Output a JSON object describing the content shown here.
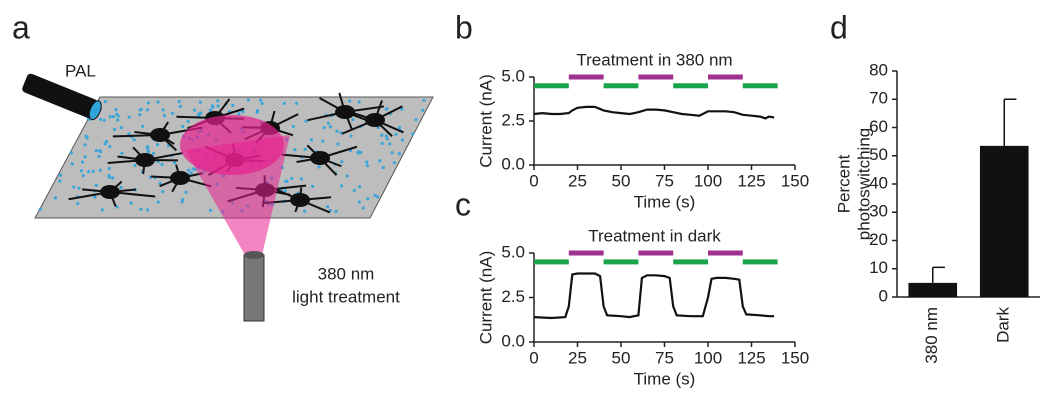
{
  "illustration": {
    "letter": "a",
    "pipette_label": "PAL",
    "light_label": [
      "380 nm",
      "light treatment"
    ]
  },
  "chart_data": [
    {
      "type": "line",
      "letter": "b",
      "title": "Treatment in 380 nm",
      "xlabel": "Time (s)",
      "ylabel": "Current (nA)",
      "x": [
        0,
        5,
        10,
        15,
        20,
        22,
        25,
        30,
        35,
        40,
        45,
        50,
        55,
        60,
        65,
        70,
        75,
        80,
        85,
        90,
        95,
        100,
        105,
        110,
        115,
        120,
        125,
        130,
        133,
        135,
        138
      ],
      "values": [
        2.9,
        2.95,
        2.9,
        2.9,
        2.95,
        3.1,
        3.25,
        3.3,
        3.3,
        3.1,
        3.0,
        2.95,
        2.9,
        3.0,
        3.15,
        3.15,
        3.1,
        3.0,
        2.9,
        2.85,
        2.8,
        3.05,
        3.05,
        3.05,
        3.0,
        2.85,
        2.8,
        2.75,
        2.65,
        2.75,
        2.7
      ],
      "color": "#111111",
      "intervals": [
        {
          "start": 0,
          "end": 20,
          "level": 4.5,
          "color": "#1aa34a"
        },
        {
          "start": 20,
          "end": 40,
          "level": 5.0,
          "color": "#a0308f"
        },
        {
          "start": 40,
          "end": 60,
          "level": 4.5,
          "color": "#1aa34a"
        },
        {
          "start": 60,
          "end": 80,
          "level": 5.0,
          "color": "#a0308f"
        },
        {
          "start": 80,
          "end": 100,
          "level": 4.5,
          "color": "#1aa34a"
        },
        {
          "start": 100,
          "end": 120,
          "level": 5.0,
          "color": "#a0308f"
        },
        {
          "start": 120,
          "end": 140,
          "level": 4.5,
          "color": "#1aa34a"
        }
      ],
      "xlim": [
        0,
        150
      ],
      "xticks": [
        0,
        25,
        50,
        75,
        100,
        125,
        150
      ],
      "ylim": [
        0,
        5
      ],
      "yticks": [
        {
          "value": 0,
          "label": "0.0"
        },
        {
          "value": 2.5,
          "label": "2.5"
        },
        {
          "value": 5,
          "label": "5.0"
        }
      ]
    },
    {
      "type": "line",
      "letter": "c",
      "title": "Treatment in dark",
      "xlabel": "Time (s)",
      "ylabel": "Current (nA)",
      "x": [
        0,
        10,
        18,
        20,
        22,
        25,
        30,
        35,
        38,
        40,
        42,
        50,
        55,
        60,
        62,
        65,
        70,
        75,
        78,
        80,
        82,
        90,
        97,
        100,
        102,
        105,
        110,
        115,
        118,
        120,
        122,
        130,
        135,
        138
      ],
      "values": [
        1.4,
        1.35,
        1.4,
        2.0,
        3.8,
        3.85,
        3.85,
        3.85,
        3.7,
        2.0,
        1.5,
        1.45,
        1.4,
        1.5,
        3.6,
        3.75,
        3.75,
        3.7,
        3.6,
        2.0,
        1.5,
        1.45,
        1.45,
        2.5,
        3.55,
        3.6,
        3.6,
        3.55,
        3.5,
        2.0,
        1.55,
        1.5,
        1.45,
        1.45
      ],
      "color": "#111111",
      "intervals": [
        {
          "start": 0,
          "end": 20,
          "level": 4.5,
          "color": "#1aa34a"
        },
        {
          "start": 20,
          "end": 40,
          "level": 5.0,
          "color": "#a0308f"
        },
        {
          "start": 40,
          "end": 60,
          "level": 4.5,
          "color": "#1aa34a"
        },
        {
          "start": 60,
          "end": 80,
          "level": 5.0,
          "color": "#a0308f"
        },
        {
          "start": 80,
          "end": 100,
          "level": 4.5,
          "color": "#1aa34a"
        },
        {
          "start": 100,
          "end": 120,
          "level": 5.0,
          "color": "#a0308f"
        },
        {
          "start": 120,
          "end": 140,
          "level": 4.5,
          "color": "#1aa34a"
        }
      ],
      "xlim": [
        0,
        150
      ],
      "xticks": [
        0,
        25,
        50,
        75,
        100,
        125,
        150
      ],
      "ylim": [
        0,
        5
      ],
      "yticks": [
        {
          "value": 0,
          "label": "0.0"
        },
        {
          "value": 2.5,
          "label": "2.5"
        },
        {
          "value": 5,
          "label": "5.0"
        }
      ]
    },
    {
      "type": "bar",
      "letter": "d",
      "ylabel": [
        "Percent",
        "photoswitching"
      ],
      "categories": [
        "380 nm",
        "Dark"
      ],
      "values": [
        5,
        53.5
      ],
      "errors": [
        5.5,
        16.5
      ],
      "color": "#111111",
      "ylim": [
        0,
        80
      ],
      "yticks": [
        0,
        10,
        20,
        30,
        40,
        50,
        60,
        70,
        80
      ]
    }
  ]
}
